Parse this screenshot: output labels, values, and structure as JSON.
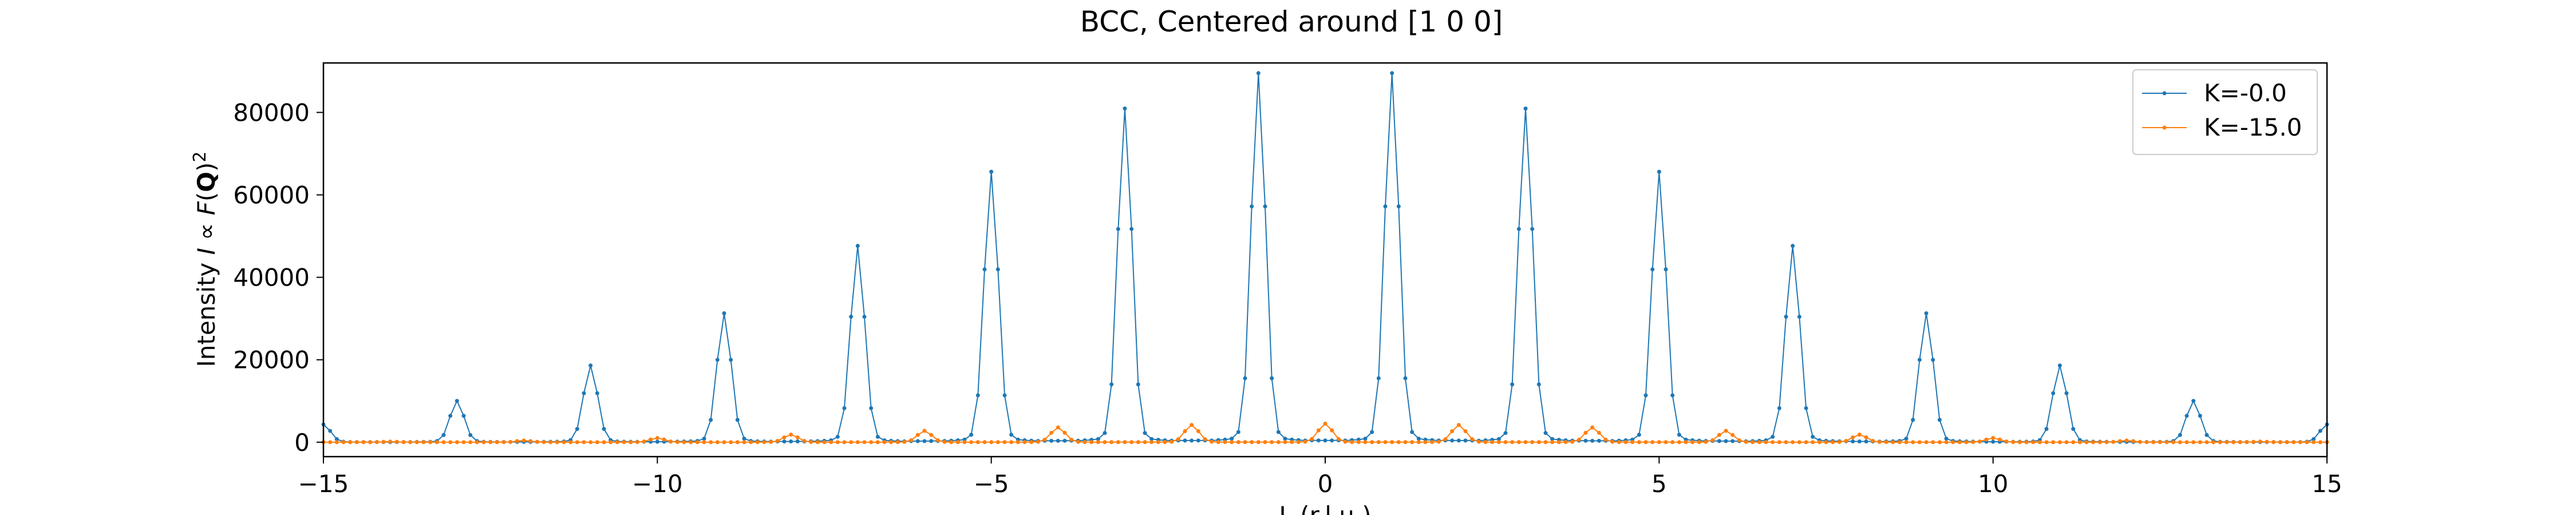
{
  "chart_data": {
    "type": "line",
    "title": "BCC, Centered around [1 0 0]",
    "xlabel": "L (r.l.u.)",
    "ylabel": "Intensity I ∝ F(Q)²",
    "ylabel_parts": {
      "prefix": "Intensity ",
      "I": "I",
      "prop": " ∝ ",
      "F": "F",
      "open": "(",
      "Q": "Q",
      "close": ")",
      "sup": "2"
    },
    "xlim": [
      -15,
      15
    ],
    "ylim": [
      -3500,
      92000
    ],
    "xticks": [
      -15,
      -10,
      -5,
      0,
      5,
      10,
      15
    ],
    "xtick_labels": [
      "−15",
      "−10",
      "−5",
      "0",
      "5",
      "10",
      "15"
    ],
    "yticks": [
      0,
      20000,
      40000,
      60000,
      80000
    ],
    "ytick_labels": [
      "0",
      "20000",
      "40000",
      "60000",
      "80000"
    ],
    "grid": false,
    "legend_position": "top-right",
    "sample_count": 301,
    "series": [
      {
        "name": "K=-0.0",
        "color": "#1f77b4",
        "marker": "dot",
        "peak_at": "odd integer L",
        "peaks": [
          {
            "x": -15,
            "y": 4200
          },
          {
            "x": -13,
            "y": 9800
          },
          {
            "x": -11,
            "y": 18200
          },
          {
            "x": -9,
            "y": 30600
          },
          {
            "x": -7,
            "y": 46600
          },
          {
            "x": -5,
            "y": 64200
          },
          {
            "x": -3,
            "y": 79200
          },
          {
            "x": -1,
            "y": 87600
          },
          {
            "x": 1,
            "y": 87600
          },
          {
            "x": 3,
            "y": 79200
          },
          {
            "x": 5,
            "y": 64200
          },
          {
            "x": 7,
            "y": 46600
          },
          {
            "x": 9,
            "y": 30600
          },
          {
            "x": 11,
            "y": 18200
          },
          {
            "x": 13,
            "y": 9800
          },
          {
            "x": 15,
            "y": 4200
          }
        ]
      },
      {
        "name": "K=-15.0",
        "color": "#ff7f0e",
        "marker": "dot",
        "peak_at": "even integer L",
        "peaks": [
          {
            "x": -14,
            "y": 150
          },
          {
            "x": -12,
            "y": 400
          },
          {
            "x": -10,
            "y": 1000
          },
          {
            "x": -8,
            "y": 1800
          },
          {
            "x": -6,
            "y": 2700
          },
          {
            "x": -4,
            "y": 3500
          },
          {
            "x": -2,
            "y": 4100
          },
          {
            "x": 0,
            "y": 4400
          },
          {
            "x": 2,
            "y": 4100
          },
          {
            "x": 4,
            "y": 3500
          },
          {
            "x": 6,
            "y": 2700
          },
          {
            "x": 8,
            "y": 1800
          },
          {
            "x": 10,
            "y": 1000
          },
          {
            "x": 12,
            "y": 400
          },
          {
            "x": 14,
            "y": 150
          }
        ]
      }
    ]
  }
}
